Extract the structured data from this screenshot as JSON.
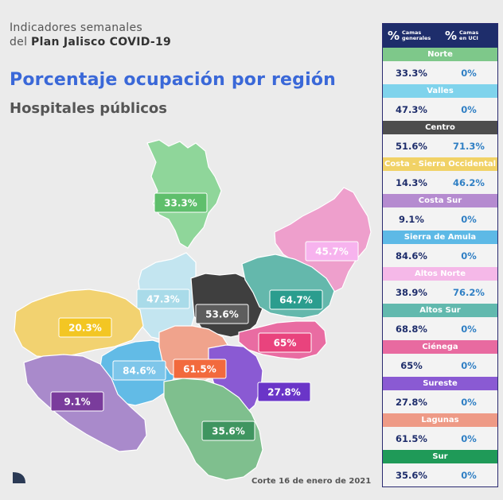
{
  "header": {
    "line1": "Indicadores semanales",
    "line2_prefix": "del ",
    "line2_bold": "Plan Jalisco COVID-19"
  },
  "title": "Porcentaje ocupación por región",
  "subtitle": "Hospitales públicos",
  "footer": "Corte 16 de enero de 2021",
  "table": {
    "col1_symbol": "%",
    "col1_label_a": "Camas",
    "col1_label_b": "generales",
    "col2_symbol": "%",
    "col2_label_a": "Camas",
    "col2_label_b": "en UCI"
  },
  "chart_data": {
    "type": "table",
    "title": "Porcentaje ocupación por región",
    "columns": [
      "Camas generales",
      "Camas en UCI"
    ],
    "regions": [
      {
        "name": "Norte",
        "general": "33.3%",
        "uci": "0%",
        "color": "#7ec88a",
        "text": "#ffffff"
      },
      {
        "name": "Valles",
        "general": "47.3%",
        "uci": "0%",
        "color": "#7fd3ec",
        "text": "#ffffff"
      },
      {
        "name": "Centro",
        "general": "51.6%",
        "uci": "71.3%",
        "color": "#4d4d4d",
        "text": "#ffffff"
      },
      {
        "name": "Costa - Sierra Occidental",
        "general": "14.3%",
        "uci": "46.2%",
        "color": "#f1d266",
        "text": "#ffffff"
      },
      {
        "name": "Costa Sur",
        "general": "9.1%",
        "uci": "0%",
        "color": "#b58bd0",
        "text": "#ffffff"
      },
      {
        "name": "Sierra de Amula",
        "general": "84.6%",
        "uci": "0%",
        "color": "#5db9e6",
        "text": "#ffffff"
      },
      {
        "name": "Altos Norte",
        "general": "38.9%",
        "uci": "76.2%",
        "color": "#f5b8e8",
        "text": "#ffffff"
      },
      {
        "name": "Altos Sur",
        "general": "68.8%",
        "uci": "0%",
        "color": "#62b9ae",
        "text": "#ffffff"
      },
      {
        "name": "Ciénega",
        "general": "65%",
        "uci": "0%",
        "color": "#e86aa0",
        "text": "#ffffff"
      },
      {
        "name": "Sureste",
        "general": "27.8%",
        "uci": "0%",
        "color": "#8a5ad3",
        "text": "#ffffff"
      },
      {
        "name": "Lagunas",
        "general": "61.5%",
        "uci": "0%",
        "color": "#ee9a86",
        "text": "#ffffff"
      },
      {
        "name": "Sur",
        "general": "35.6%",
        "uci": "0%",
        "color": "#1f9a58",
        "text": "#ffffff"
      }
    ],
    "map_labels": [
      {
        "region": "Norte",
        "value": "33.3%",
        "color": "#5fbf6c"
      },
      {
        "region": "Altos Norte",
        "value": "45.7%",
        "color": "#f7b3ee"
      },
      {
        "region": "Valles",
        "value": "47.3%",
        "color": "#a9dbe9"
      },
      {
        "region": "Centro",
        "value": "53.6%",
        "color": "#5d5d5d"
      },
      {
        "region": "Altos Sur",
        "value": "64.7%",
        "color": "#2b9d8e"
      },
      {
        "region": "Costa - Sierra Occidental",
        "value": "20.3%",
        "color": "#f3c623"
      },
      {
        "region": "Ciénega",
        "value": "65%",
        "color": "#e9437d"
      },
      {
        "region": "Sierra de Amula",
        "value": "84.6%",
        "color": "#7ec6ea"
      },
      {
        "region": "Lagunas",
        "value": "61.5%",
        "color": "#f26a3d"
      },
      {
        "region": "Sureste",
        "value": "27.8%",
        "color": "#6a35c8"
      },
      {
        "region": "Costa Sur",
        "value": "9.1%",
        "color": "#7a3c9c"
      },
      {
        "region": "Sur",
        "value": "35.6%",
        "color": "#3f9560"
      }
    ]
  }
}
